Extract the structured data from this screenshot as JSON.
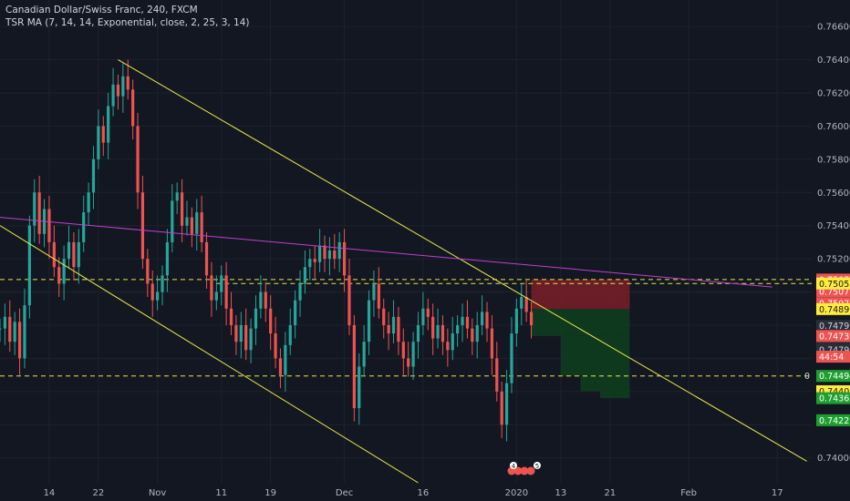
{
  "header": {
    "symbol_title": "Canadian Dollar/Swiss Franc, 240, FXCM",
    "indicator": "TSR MA (7, 14, 14, Exponential, close, 2, 25, 3, 14)"
  },
  "colors": {
    "background": "#131722",
    "up": "#26a69a",
    "down": "#ef5350",
    "trendline": "#e8e84a",
    "ma_line": "#c040d0",
    "level_line": "#e8e84a",
    "stop_zone": "#7a1f28",
    "target_zone": "#0f3d1e"
  },
  "chart_data": {
    "type": "candlestick",
    "ylim": [
      0.7385,
      0.7676
    ],
    "x_axis": {
      "labels": [
        "14",
        "22",
        "Nov",
        "11",
        "19",
        "Dec",
        "16",
        "2020",
        "13",
        "21",
        "Feb",
        "17"
      ],
      "positions": [
        10,
        20,
        32,
        45,
        55,
        70,
        86,
        105,
        114,
        124,
        140,
        158
      ]
    },
    "y_axis": {
      "ticks": [
        0.74,
        0.742,
        0.744,
        0.746,
        0.748,
        0.75,
        0.752,
        0.754,
        0.756,
        0.758,
        0.76,
        0.762,
        0.764,
        0.766
      ],
      "labels": [
        "0.74000",
        "",
        "",
        "",
        "",
        "",
        "0.75200",
        "0.75400",
        "0.75600",
        "0.75800",
        "0.76000",
        "0.76200",
        "0.76400",
        "0.76600"
      ]
    },
    "close_path": [
      [
        0,
        0.7478
      ],
      [
        1,
        0.7485
      ],
      [
        2,
        0.747
      ],
      [
        3,
        0.7482
      ],
      [
        4,
        0.746
      ],
      [
        5,
        0.7492
      ],
      [
        6,
        0.754
      ],
      [
        7,
        0.756
      ],
      [
        8,
        0.7535
      ],
      [
        9,
        0.755
      ],
      [
        10,
        0.753
      ],
      [
        11,
        0.7515
      ],
      [
        12,
        0.7505
      ],
      [
        13,
        0.752
      ],
      [
        14,
        0.753
      ],
      [
        15,
        0.7515
      ],
      [
        16,
        0.753
      ],
      [
        17,
        0.7548
      ],
      [
        18,
        0.756
      ],
      [
        19,
        0.758
      ],
      [
        20,
        0.76
      ],
      [
        21,
        0.759
      ],
      [
        22,
        0.7612
      ],
      [
        23,
        0.7625
      ],
      [
        24,
        0.7618
      ],
      [
        25,
        0.763
      ],
      [
        26,
        0.7622
      ],
      [
        27,
        0.76
      ],
      [
        28,
        0.756
      ],
      [
        29,
        0.752
      ],
      [
        30,
        0.7505
      ],
      [
        31,
        0.7495
      ],
      [
        32,
        0.75
      ],
      [
        33,
        0.751
      ],
      [
        34,
        0.753
      ],
      [
        35,
        0.7555
      ],
      [
        36,
        0.756
      ],
      [
        37,
        0.754
      ],
      [
        38,
        0.7545
      ],
      [
        39,
        0.7535
      ],
      [
        40,
        0.7548
      ],
      [
        41,
        0.753
      ],
      [
        42,
        0.751
      ],
      [
        43,
        0.7495
      ],
      [
        44,
        0.75
      ],
      [
        45,
        0.751
      ],
      [
        46,
        0.749
      ],
      [
        47,
        0.748
      ],
      [
        48,
        0.747
      ],
      [
        49,
        0.748
      ],
      [
        50,
        0.7465
      ],
      [
        51,
        0.7478
      ],
      [
        52,
        0.749
      ],
      [
        53,
        0.75
      ],
      [
        54,
        0.749
      ],
      [
        55,
        0.7475
      ],
      [
        56,
        0.746
      ],
      [
        57,
        0.745
      ],
      [
        58,
        0.7468
      ],
      [
        59,
        0.748
      ],
      [
        60,
        0.7495
      ],
      [
        61,
        0.7505
      ],
      [
        62,
        0.7515
      ],
      [
        63,
        0.752
      ],
      [
        64,
        0.7518
      ],
      [
        65,
        0.7528
      ],
      [
        66,
        0.752
      ],
      [
        67,
        0.7525
      ],
      [
        68,
        0.752
      ],
      [
        69,
        0.753
      ],
      [
        70,
        0.751
      ],
      [
        71,
        0.748
      ],
      [
        72,
        0.743
      ],
      [
        73,
        0.7455
      ],
      [
        74,
        0.747
      ],
      [
        75,
        0.7495
      ],
      [
        76,
        0.7505
      ],
      [
        77,
        0.749
      ],
      [
        78,
        0.748
      ],
      [
        79,
        0.7475
      ],
      [
        80,
        0.7485
      ],
      [
        81,
        0.747
      ],
      [
        82,
        0.746
      ],
      [
        83,
        0.7455
      ],
      [
        84,
        0.747
      ],
      [
        85,
        0.748
      ],
      [
        86,
        0.749
      ],
      [
        87,
        0.7485
      ],
      [
        88,
        0.7472
      ],
      [
        89,
        0.748
      ],
      [
        90,
        0.747
      ],
      [
        91,
        0.7465
      ],
      [
        92,
        0.7475
      ],
      [
        93,
        0.748
      ],
      [
        94,
        0.7485
      ],
      [
        95,
        0.7478
      ],
      [
        96,
        0.747
      ],
      [
        97,
        0.748
      ],
      [
        98,
        0.7488
      ],
      [
        99,
        0.7478
      ],
      [
        100,
        0.746
      ],
      [
        101,
        0.744
      ],
      [
        102,
        0.742
      ],
      [
        103,
        0.7445
      ],
      [
        104,
        0.7475
      ],
      [
        105,
        0.749
      ],
      [
        106,
        0.7497
      ],
      [
        107,
        0.7488
      ],
      [
        108,
        0.748
      ]
    ],
    "price_tags": [
      {
        "label": "0.75075",
        "value": 0.75075,
        "style": "red"
      },
      {
        "label": "0.75075",
        "value": 0.75075,
        "style": "red",
        "stack": 1
      },
      {
        "label": "0.75074",
        "value": 0.75074,
        "style": "red",
        "stack": 2
      },
      {
        "label": "0.75051",
        "value": 0.75051,
        "style": "yellow"
      },
      {
        "label": "0.74897",
        "value": 0.74897,
        "style": "yellow"
      },
      {
        "label": "0.74796",
        "value": 0.74796,
        "style": "gray"
      },
      {
        "label": "0.74796",
        "value": 0.74796,
        "style": "gray",
        "stack": 1
      },
      {
        "label": "0.74795",
        "value": 0.74795,
        "style": "gray",
        "stack": 2
      },
      {
        "label": "0.74735",
        "value": 0.74735,
        "style": "red"
      },
      {
        "label": "44:54",
        "value": 0.7461,
        "style": "red"
      },
      {
        "label": "0.74494",
        "value": 0.74494,
        "style": "green"
      },
      {
        "label": "0.74402",
        "value": 0.74402,
        "style": "yellow"
      },
      {
        "label": "0.74360",
        "value": 0.7436,
        "style": "green"
      },
      {
        "label": "0.74227",
        "value": 0.74227,
        "style": "green"
      }
    ],
    "axis_zero_label": "0",
    "event_badges": [
      "4",
      "5"
    ]
  }
}
